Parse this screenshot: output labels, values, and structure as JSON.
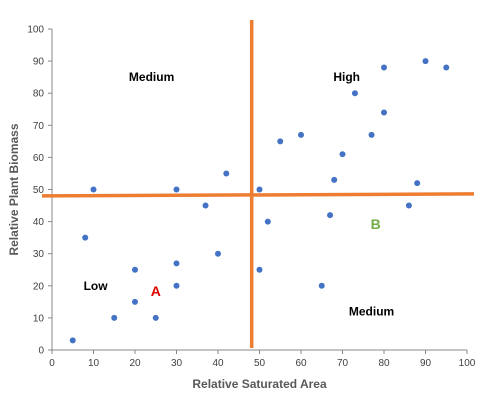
{
  "chart_data": {
    "type": "scatter",
    "title": "",
    "xlabel": "Relative Saturated Area",
    "ylabel": "Relative Plant Biomass",
    "xlim": [
      0,
      100
    ],
    "ylim": [
      0,
      100
    ],
    "xticks": [
      0,
      10,
      20,
      30,
      40,
      50,
      60,
      70,
      80,
      90,
      100
    ],
    "yticks": [
      0,
      10,
      20,
      30,
      40,
      50,
      60,
      70,
      80,
      90,
      100
    ],
    "grid": false,
    "colors": {
      "points": "#4472c4",
      "dividers": "#ed7d31",
      "label_a": "#e00000",
      "label_b": "#70ad47",
      "text": "#000000"
    },
    "points": [
      {
        "x": 5,
        "y": 3
      },
      {
        "x": 8,
        "y": 35
      },
      {
        "x": 10,
        "y": 50
      },
      {
        "x": 15,
        "y": 10
      },
      {
        "x": 20,
        "y": 15
      },
      {
        "x": 20,
        "y": 25
      },
      {
        "x": 25,
        "y": 10
      },
      {
        "x": 30,
        "y": 20
      },
      {
        "x": 30,
        "y": 27
      },
      {
        "x": 30,
        "y": 50
      },
      {
        "x": 37,
        "y": 45
      },
      {
        "x": 40,
        "y": 30
      },
      {
        "x": 42,
        "y": 55
      },
      {
        "x": 50,
        "y": 25
      },
      {
        "x": 50,
        "y": 50
      },
      {
        "x": 52,
        "y": 40
      },
      {
        "x": 55,
        "y": 65
      },
      {
        "x": 60,
        "y": 67
      },
      {
        "x": 65,
        "y": 20
      },
      {
        "x": 67,
        "y": 42
      },
      {
        "x": 68,
        "y": 53
      },
      {
        "x": 70,
        "y": 61
      },
      {
        "x": 73,
        "y": 80
      },
      {
        "x": 77,
        "y": 67
      },
      {
        "x": 80,
        "y": 74
      },
      {
        "x": 80,
        "y": 88
      },
      {
        "x": 86,
        "y": 45
      },
      {
        "x": 88,
        "y": 52
      },
      {
        "x": 90,
        "y": 90
      },
      {
        "x": 95,
        "y": 88
      }
    ],
    "divider_vertical_x": 48,
    "divider_horizontal_y": 48,
    "annotations": [
      {
        "text": "Medium",
        "x": 24,
        "y": 85,
        "kind": "quadrant"
      },
      {
        "text": "High",
        "x": 71,
        "y": 85,
        "kind": "quadrant"
      },
      {
        "text": "Low",
        "x": 10.5,
        "y": 20,
        "kind": "quadrant"
      },
      {
        "text": "Medium",
        "x": 77,
        "y": 12,
        "kind": "quadrant"
      },
      {
        "text": "A",
        "x": 25,
        "y": 18,
        "kind": "point-a"
      },
      {
        "text": "B",
        "x": 78,
        "y": 39,
        "kind": "point-b"
      }
    ]
  }
}
